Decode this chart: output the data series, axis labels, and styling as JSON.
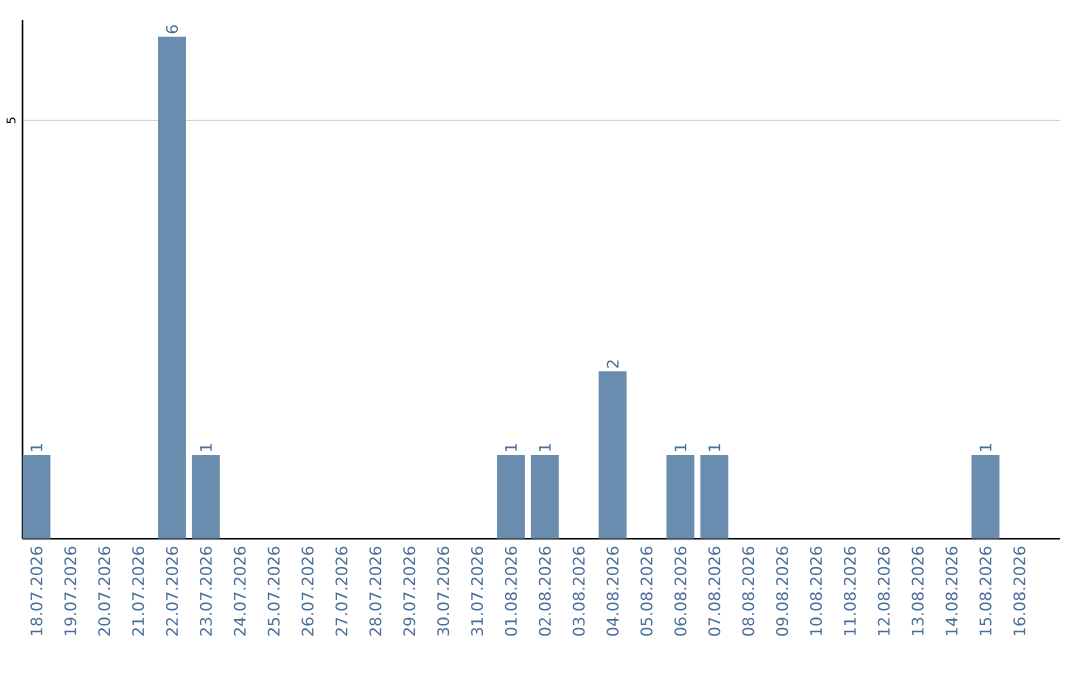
{
  "chart_data": {
    "type": "bar",
    "categories": [
      "18.07.2026",
      "19.07.2026",
      "20.07.2026",
      "21.07.2026",
      "22.07.2026",
      "23.07.2026",
      "24.07.2026",
      "25.07.2026",
      "26.07.2026",
      "27.07.2026",
      "28.07.2026",
      "29.07.2026",
      "30.07.2026",
      "31.07.2026",
      "01.08.2026",
      "02.08.2026",
      "03.08.2026",
      "04.08.2026",
      "05.08.2026",
      "06.08.2026",
      "07.08.2026",
      "08.08.2026",
      "09.08.2026",
      "10.08.2026",
      "11.08.2026",
      "12.08.2026",
      "13.08.2026",
      "14.08.2026",
      "15.08.2026",
      "16.08.2026"
    ],
    "values": [
      1,
      0,
      0,
      0,
      6,
      1,
      0,
      0,
      0,
      0,
      0,
      0,
      0,
      0,
      1,
      1,
      0,
      2,
      0,
      1,
      1,
      0,
      0,
      0,
      0,
      0,
      0,
      0,
      1,
      0
    ],
    "value_labels": [
      "1",
      null,
      null,
      null,
      "6",
      "1",
      null,
      null,
      null,
      null,
      null,
      null,
      null,
      null,
      "1",
      "1",
      null,
      "2",
      null,
      "1",
      "1",
      null,
      null,
      null,
      null,
      null,
      null,
      null,
      "1",
      null
    ],
    "color": "#6a8cae",
    "ylim": [
      0,
      6.2
    ],
    "yticks": [
      5
    ],
    "grid": "y"
  }
}
